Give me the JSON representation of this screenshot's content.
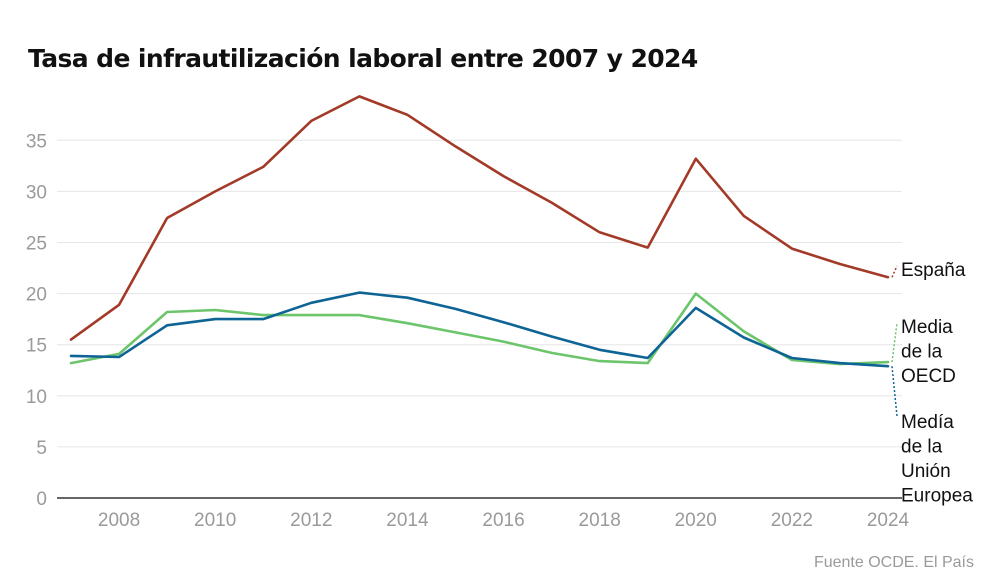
{
  "chart_data": {
    "type": "line",
    "title": "Tasa de infrautilización laboral entre 2007 y 2024",
    "xlabel": "",
    "ylabel": "",
    "x": [
      2007,
      2008,
      2009,
      2010,
      2011,
      2012,
      2013,
      2014,
      2015,
      2016,
      2017,
      2018,
      2019,
      2020,
      2021,
      2022,
      2023,
      2024
    ],
    "x_ticks": [
      "2008",
      "2010",
      "2012",
      "2014",
      "2016",
      "2018",
      "2020",
      "2022",
      "2024"
    ],
    "y_ticks": [
      "0",
      "5",
      "10",
      "15",
      "20",
      "25",
      "30",
      "35"
    ],
    "xlim": [
      2007,
      2024
    ],
    "ylim": [
      0,
      39
    ],
    "grid": true,
    "series": [
      {
        "name": "España",
        "color": "#a33a28",
        "legend_lines": [
          "España"
        ],
        "values": [
          15.5,
          18.9,
          27.4,
          30.0,
          32.4,
          36.9,
          39.3,
          37.5,
          34.4,
          31.5,
          28.9,
          26.0,
          24.5,
          33.2,
          27.6,
          24.4,
          22.9,
          21.6
        ]
      },
      {
        "name": "Media de la OECD",
        "color": "#6cc56a",
        "legend_lines": [
          "Media",
          "de la",
          "OECD"
        ],
        "values": [
          13.2,
          14.1,
          18.2,
          18.4,
          17.9,
          17.9,
          17.9,
          17.1,
          16.2,
          15.3,
          14.2,
          13.4,
          13.2,
          20.0,
          16.3,
          13.5,
          13.1,
          13.3
        ]
      },
      {
        "name": "Medía de la Unión Europea",
        "color": "#0f6496",
        "legend_lines": [
          "Medía",
          "de la",
          "Unión",
          "Europea"
        ],
        "values": [
          13.9,
          13.8,
          16.9,
          17.5,
          17.5,
          19.1,
          20.1,
          19.6,
          18.5,
          17.2,
          15.8,
          14.5,
          13.7,
          18.6,
          15.7,
          13.7,
          13.2,
          12.9
        ]
      }
    ]
  },
  "source_note": "Fuente OCDE. El País"
}
